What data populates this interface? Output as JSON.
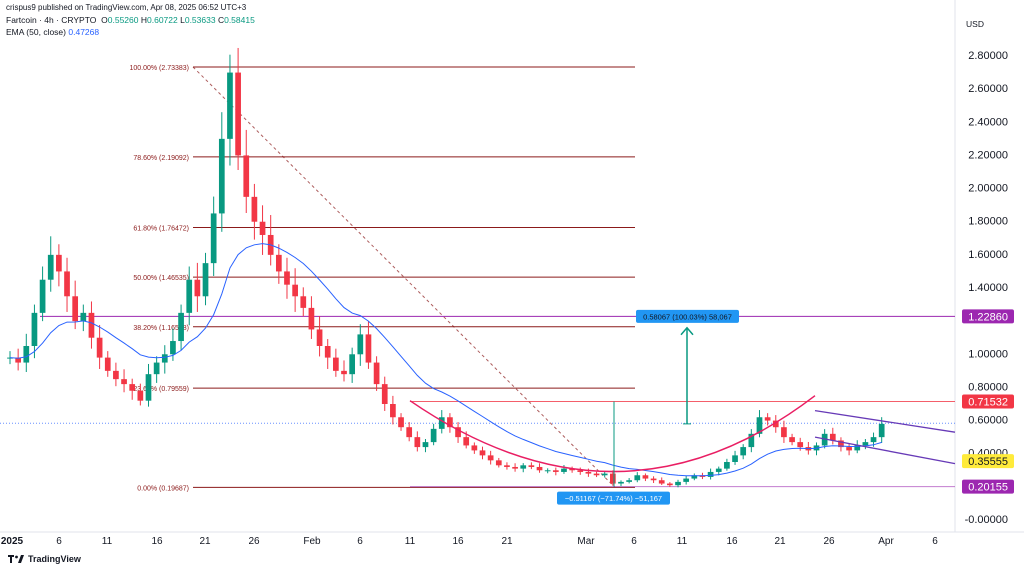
{
  "header": {
    "publish": "crispus9 published on TradingView.com, Apr 08, 2025 06:52 UTC+3",
    "symbol": "Fartcoin · 4h · CRYPTO",
    "o_label": "O",
    "o": "0.55260",
    "h_label": "H",
    "h": "0.60722",
    "l_label": "L",
    "l": "0.53633",
    "c_label": "C",
    "c": "0.58415",
    "ema_label": "EMA (50, close)",
    "ema_value": "0.47268"
  },
  "currency": "USD",
  "footer": {
    "brand": "TradingView"
  },
  "colors": {
    "up": "#089981",
    "down": "#f23645",
    "ema": "#2962ff",
    "fib": "#8b1a1a",
    "purple": "#9c27b0",
    "pink": "#e91e63",
    "teal": "#089981",
    "blue_label": "#2196f3",
    "yellow": "#ffeb3b"
  },
  "chart_data": {
    "type": "candlestick",
    "y_axis": {
      "ticks": [
        "2.80000",
        "2.60000",
        "2.40000",
        "2.20000",
        "2.00000",
        "1.80000",
        "1.60000",
        "1.40000",
        "1.22860",
        "1.00000",
        "0.80000",
        "0.71532",
        "0.60000",
        "0.40000",
        "0.35555",
        "0.20155",
        "-0.00000"
      ],
      "range": [
        -0.05,
        2.9
      ]
    },
    "x_axis": {
      "ticks": [
        "2025",
        "6",
        "11",
        "16",
        "21",
        "26",
        "Feb",
        "6",
        "11",
        "16",
        "21",
        "Mar",
        "6",
        "11",
        "16",
        "21",
        "26",
        "Apr",
        "6"
      ]
    },
    "fib_levels": [
      {
        "label": "100.00% (2.73383)",
        "value": 2.73383
      },
      {
        "label": "78.60% (2.19092)",
        "value": 2.19092
      },
      {
        "label": "61.80% (1.76472)",
        "value": 1.76472
      },
      {
        "label": "50.00% (1.46535)",
        "value": 1.46535
      },
      {
        "label": "38.20% (1.16598)",
        "value": 1.16598
      },
      {
        "label": "23.60% (0.79559)",
        "value": 0.79559
      },
      {
        "label": "0.00% (0.19687)",
        "value": 0.19687
      }
    ],
    "price_labels": [
      {
        "text": "1.22860",
        "value": 1.2286,
        "color": "#9c27b0"
      },
      {
        "text": "0.71532",
        "value": 0.71532,
        "color": "#f23645"
      },
      {
        "text": "0.35555",
        "value": 0.35555,
        "color": "#ffeb3b"
      },
      {
        "text": "0.20155",
        "value": 0.20155,
        "color": "#9c27b0"
      }
    ],
    "measure_up": "0.58067 (100.03%) 58,067",
    "measure_down": "−0.51167 (−71.74%) −51,167",
    "series_close": [
      0.98,
      0.95,
      1.05,
      1.25,
      1.45,
      1.6,
      1.5,
      1.35,
      1.2,
      1.25,
      1.1,
      0.98,
      0.9,
      0.85,
      0.82,
      0.78,
      0.72,
      0.88,
      0.95,
      1.0,
      1.08,
      1.25,
      1.45,
      1.35,
      1.55,
      1.85,
      2.3,
      2.7,
      2.2,
      1.95,
      1.8,
      1.72,
      1.6,
      1.5,
      1.42,
      1.35,
      1.28,
      1.15,
      1.05,
      0.98,
      0.9,
      0.88,
      1.0,
      1.12,
      0.95,
      0.82,
      0.7,
      0.62,
      0.56,
      0.5,
      0.44,
      0.47,
      0.55,
      0.62,
      0.56,
      0.5,
      0.45,
      0.42,
      0.39,
      0.36,
      0.33,
      0.32,
      0.31,
      0.33,
      0.32,
      0.3,
      0.3,
      0.29,
      0.31,
      0.3,
      0.29,
      0.28,
      0.27,
      0.28,
      0.22,
      0.23,
      0.24,
      0.27,
      0.25,
      0.24,
      0.22,
      0.21,
      0.23,
      0.25,
      0.27,
      0.26,
      0.29,
      0.31,
      0.35,
      0.39,
      0.44,
      0.52,
      0.62,
      0.6,
      0.56,
      0.5,
      0.47,
      0.44,
      0.42,
      0.45,
      0.52,
      0.48,
      0.44,
      0.42,
      0.45,
      0.47,
      0.5,
      0.58
    ]
  }
}
